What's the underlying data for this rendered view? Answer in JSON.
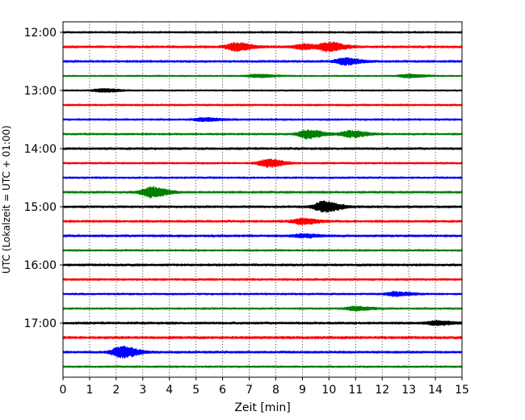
{
  "chart_data": {
    "type": "line",
    "title": "",
    "xlabel": "Zeit  [min]",
    "ylabel": "UTC (Lokalzeit = UTC + 01:00)",
    "xlim": [
      0,
      15
    ],
    "x_ticks": [
      0,
      1,
      2,
      3,
      4,
      5,
      6,
      7,
      8,
      9,
      10,
      11,
      12,
      13,
      14,
      15
    ],
    "y_tick_labels": [
      "12:00",
      "13:00",
      "14:00",
      "15:00",
      "16:00",
      "17:00"
    ],
    "y_tick_rows": [
      0,
      4,
      8,
      12,
      16,
      20
    ],
    "grid": "vertical dotted",
    "series_colors": [
      "#000000",
      "#ff0000",
      "#0000ff",
      "#008000"
    ],
    "rows": [
      {
        "time": "12:00",
        "color": "#000000",
        "amp": 0.25,
        "events": []
      },
      {
        "time": "12:15",
        "color": "#ff0000",
        "amp": 0.3,
        "events": [
          {
            "t": 6.5,
            "a": 1.0
          },
          {
            "t": 9.0,
            "a": 0.6
          },
          {
            "t": 10.0,
            "a": 1.1
          }
        ]
      },
      {
        "time": "12:30",
        "color": "#0000ff",
        "amp": 0.3,
        "events": [
          {
            "t": 10.6,
            "a": 0.8
          }
        ]
      },
      {
        "time": "12:45",
        "color": "#008000",
        "amp": 0.2,
        "events": [
          {
            "t": 7.3,
            "a": 0.4
          },
          {
            "t": 13.0,
            "a": 0.4
          }
        ]
      },
      {
        "time": "13:00",
        "color": "#000000",
        "amp": 0.2,
        "events": [
          {
            "t": 1.5,
            "a": 0.4
          }
        ]
      },
      {
        "time": "13:15",
        "color": "#ff0000",
        "amp": 0.25,
        "events": []
      },
      {
        "time": "13:30",
        "color": "#0000ff",
        "amp": 0.25,
        "events": [
          {
            "t": 5.3,
            "a": 0.4
          }
        ]
      },
      {
        "time": "13:45",
        "color": "#008000",
        "amp": 0.25,
        "events": [
          {
            "t": 9.2,
            "a": 1.1
          },
          {
            "t": 10.8,
            "a": 0.8
          }
        ]
      },
      {
        "time": "14:00",
        "color": "#000000",
        "amp": 0.3,
        "events": []
      },
      {
        "time": "14:15",
        "color": "#ff0000",
        "amp": 0.25,
        "events": [
          {
            "t": 7.7,
            "a": 1.0
          }
        ]
      },
      {
        "time": "14:30",
        "color": "#0000ff",
        "amp": 0.25,
        "events": []
      },
      {
        "time": "14:45",
        "color": "#008000",
        "amp": 0.3,
        "events": [
          {
            "t": 3.3,
            "a": 1.3
          }
        ]
      },
      {
        "time": "15:00",
        "color": "#000000",
        "amp": 0.3,
        "events": [
          {
            "t": 9.8,
            "a": 1.4
          }
        ]
      },
      {
        "time": "15:15",
        "color": "#ff0000",
        "amp": 0.3,
        "events": [
          {
            "t": 9.0,
            "a": 0.7
          }
        ]
      },
      {
        "time": "15:30",
        "color": "#0000ff",
        "amp": 0.3,
        "events": [
          {
            "t": 9.0,
            "a": 0.4
          }
        ]
      },
      {
        "time": "15:45",
        "color": "#008000",
        "amp": 0.25,
        "events": []
      },
      {
        "time": "16:00",
        "color": "#000000",
        "amp": 0.3,
        "events": []
      },
      {
        "time": "16:15",
        "color": "#ff0000",
        "amp": 0.3,
        "events": []
      },
      {
        "time": "16:30",
        "color": "#0000ff",
        "amp": 0.25,
        "events": [
          {
            "t": 12.5,
            "a": 0.5
          }
        ]
      },
      {
        "time": "16:45",
        "color": "#008000",
        "amp": 0.25,
        "events": [
          {
            "t": 11.0,
            "a": 0.5
          }
        ]
      },
      {
        "time": "17:00",
        "color": "#000000",
        "amp": 0.3,
        "events": [
          {
            "t": 14.0,
            "a": 0.5
          }
        ]
      },
      {
        "time": "17:15",
        "color": "#ff0000",
        "amp": 0.35,
        "events": []
      },
      {
        "time": "17:30",
        "color": "#0000ff",
        "amp": 0.3,
        "events": [
          {
            "t": 2.2,
            "a": 1.5
          }
        ]
      },
      {
        "time": "17:45",
        "color": "#008000",
        "amp": 0.25,
        "events": []
      }
    ]
  }
}
